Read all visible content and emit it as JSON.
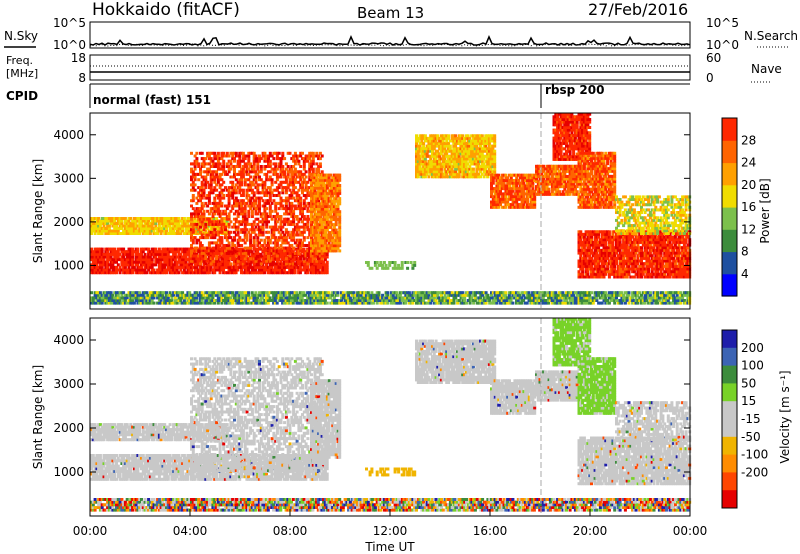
{
  "header": {
    "title": "Hokkaido (fitACF)",
    "beam": "Beam 13",
    "date": "27/Feb/2016"
  },
  "strips": {
    "sky_label": "N.Sky",
    "search_label": "N.Search",
    "freq_label_1": "Freq.",
    "freq_label_2": "[MHz]",
    "nave_label": "Nave",
    "cpid_label": "CPID",
    "sky_ticks": [
      "10^5",
      "10^0"
    ],
    "search_ticks": [
      "10^5",
      "10^0"
    ],
    "freq_ticks": [
      "18",
      "8"
    ],
    "nave_ticks": [
      "60",
      "0"
    ],
    "cpid_segments": [
      "normal (fast) 151",
      "rbsp 200"
    ]
  },
  "colors": {
    "power": [
      "#0000ff",
      "#1e50a0",
      "#3c8c3c",
      "#7cc04c",
      "#f0dc00",
      "#ffa000",
      "#ff6400",
      "#ff2800",
      "#e60000"
    ],
    "velocity": [
      "#1e1eaa",
      "#3c64b4",
      "#3c8c3c",
      "#78d228",
      "#c8c8c8",
      "#c8c8c8",
      "#f0b400",
      "#ff8c00",
      "#ff4600",
      "#e60000"
    ]
  },
  "chart_data": [
    {
      "type": "heatmap",
      "name": "power",
      "ylabel": "Slant Range [km]",
      "ylim": [
        0,
        4500
      ],
      "yticks": [
        "1000",
        "2000",
        "3000",
        "4000"
      ],
      "xlim": [
        "00:00",
        "24:00"
      ],
      "colorbar_label": "Power [dB]",
      "colorbar_ticks": [
        "4",
        "8",
        "12",
        "16",
        "20",
        "24",
        "28"
      ],
      "colorbar_range": [
        0,
        32
      ]
    },
    {
      "type": "heatmap",
      "name": "velocity",
      "ylabel": "Slant Range [km]",
      "ylim": [
        0,
        4500
      ],
      "yticks": [
        "1000",
        "2000",
        "3000",
        "4000"
      ],
      "xlim": [
        "00:00",
        "24:00"
      ],
      "xticks": [
        "00:00",
        "04:00",
        "08:00",
        "12:00",
        "16:00",
        "20:00",
        "00:00"
      ],
      "xlabel": "Time UT",
      "colorbar_label": "Velocity [m s⁻¹]",
      "colorbar_ticks": [
        "200",
        "100",
        "50",
        "15",
        "-15",
        "-50",
        "-100",
        "-200"
      ]
    }
  ]
}
